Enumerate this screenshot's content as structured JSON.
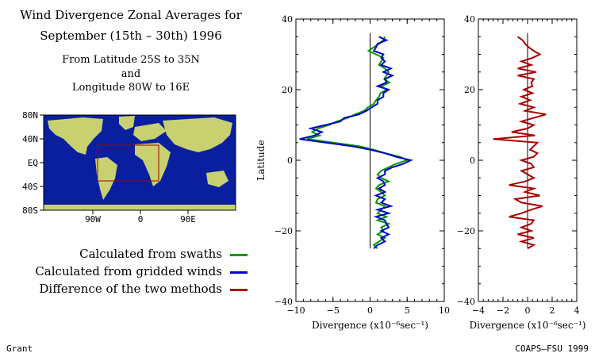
{
  "title": {
    "line1": "Wind Divergence Zonal Averages for",
    "line2": "September (15th – 30th) 1996",
    "line3": "From Latitude 25S to 35N",
    "line4": "and",
    "line5": "Longitude 80W to 16E"
  },
  "map": {
    "lat_labels": [
      "80N",
      "40N",
      "EQ",
      "40S",
      "80S"
    ],
    "lon_labels": [
      "90W",
      "0",
      "90E"
    ],
    "colors": {
      "ocean": "#0a1fa0",
      "land": "#c8d070",
      "box": "#aa0000"
    }
  },
  "legend": [
    {
      "label": "Calculated from swaths",
      "color": "#009900"
    },
    {
      "label": "Calculated from gridded winds",
      "color": "#0000cc"
    },
    {
      "label": "Difference of the two methods",
      "color": "#aa0000"
    }
  ],
  "footer": {
    "left": "Grant",
    "right": "COAPS–FSU 1999"
  },
  "chart_data": [
    {
      "type": "line",
      "orientation": "vertical-profile",
      "ylabel": "Latitude",
      "xlabel": "Divergence (x10⁻⁶sec⁻¹)",
      "xlim": [
        -10,
        10
      ],
      "ylim": [
        -40,
        40
      ],
      "xticks": [
        "−10",
        "−5",
        "0",
        "5",
        "10"
      ],
      "yticks": [
        "−40",
        "−20",
        "0",
        "20",
        "40"
      ],
      "series": [
        {
          "name": "Calculated from swaths",
          "color": "#009900",
          "lat": [
            35,
            34,
            33,
            32,
            31,
            30,
            29,
            28,
            27,
            26,
            25,
            24,
            23,
            22,
            21,
            20,
            19,
            18,
            17,
            16,
            15,
            14,
            13,
            12,
            11,
            10,
            9,
            8,
            7,
            6,
            5,
            4,
            3,
            2,
            1,
            0,
            -1,
            -2,
            -3,
            -4,
            -5,
            -6,
            -7,
            -8,
            -9,
            -10,
            -11,
            -12,
            -13,
            -14,
            -15,
            -16,
            -17,
            -18,
            -19,
            -20,
            -21,
            -22,
            -23,
            -24,
            -25
          ],
          "div": [
            2.0,
            1.8,
            1.2,
            0.5,
            -0.2,
            0.8,
            1.8,
            1.5,
            1.2,
            2.0,
            2.5,
            2.2,
            1.9,
            2.6,
            1.5,
            2.2,
            1.4,
            1.2,
            0.8,
            0.5,
            -0.3,
            -0.8,
            -2.0,
            -3.0,
            -4.5,
            -5.5,
            -7.0,
            -7.8,
            -6.8,
            -8.5,
            -5.0,
            -1.5,
            0.5,
            2.0,
            4.0,
            5.0,
            3.5,
            2.5,
            1.5,
            1.0,
            1.5,
            2.5,
            1.2,
            0.8,
            1.5,
            2.0,
            1.0,
            0.8,
            2.0,
            1.5,
            1.0,
            2.2,
            1.0,
            2.5,
            1.5,
            1.8,
            1.0,
            2.0,
            1.2,
            0.5,
            1.0
          ]
        },
        {
          "name": "Calculated from gridded winds",
          "color": "#0000cc",
          "lat": [
            35,
            34,
            33,
            32,
            31,
            30,
            29,
            28,
            27,
            26,
            25,
            24,
            23,
            22,
            21,
            20,
            19,
            18,
            17,
            16,
            15,
            14,
            13,
            12,
            11,
            10,
            9,
            8,
            7,
            6,
            5,
            4,
            3,
            2,
            1,
            0,
            -1,
            -2,
            -3,
            -4,
            -5,
            -6,
            -7,
            -8,
            -9,
            -10,
            -11,
            -12,
            -13,
            -14,
            -15,
            -16,
            -17,
            -18,
            -19,
            -20,
            -21,
            -22,
            -23,
            -24,
            -25
          ],
          "div": [
            1.2,
            2.2,
            1.0,
            0.8,
            0.5,
            1.8,
            1.5,
            2.0,
            1.5,
            2.8,
            1.8,
            3.0,
            2.0,
            2.2,
            1.0,
            2.5,
            1.8,
            1.8,
            1.0,
            1.0,
            0.2,
            -0.5,
            -1.5,
            -3.5,
            -4.0,
            -6.0,
            -8.0,
            -6.5,
            -7.5,
            -9.5,
            -6.0,
            -2.5,
            0.0,
            2.0,
            3.5,
            5.5,
            4.5,
            3.0,
            2.0,
            2.0,
            1.0,
            1.8,
            2.0,
            1.2,
            2.0,
            0.8,
            2.0,
            1.5,
            2.8,
            1.0,
            2.5,
            0.8,
            2.0,
            2.2,
            2.5,
            1.5,
            2.5,
            1.5,
            2.0,
            1.0,
            0.5
          ]
        }
      ]
    },
    {
      "type": "line",
      "orientation": "vertical-profile",
      "xlabel": "Divergence (x10⁻⁶sec⁻¹)",
      "xlim": [
        -4,
        4
      ],
      "ylim": [
        -40,
        40
      ],
      "xticks": [
        "−4",
        "−2",
        "0",
        "2",
        "4"
      ],
      "yticks": [
        "−40",
        "−20",
        "0",
        "20",
        "40"
      ],
      "series": [
        {
          "name": "Difference of the two methods",
          "color": "#aa0000",
          "lat": [
            35,
            34,
            33,
            32,
            31,
            30,
            29,
            28,
            27,
            26,
            25,
            24,
            23,
            22,
            21,
            20,
            19,
            18,
            17,
            16,
            15,
            14,
            13,
            12,
            11,
            10,
            9,
            8,
            7,
            6,
            5,
            4,
            3,
            2,
            1,
            0,
            -1,
            -2,
            -3,
            -4,
            -5,
            -6,
            -7,
            -8,
            -9,
            -10,
            -11,
            -12,
            -13,
            -14,
            -15,
            -16,
            -17,
            -18,
            -19,
            -20,
            -21,
            -22,
            -23,
            -24,
            -25
          ],
          "div": [
            -0.8,
            -0.4,
            -0.2,
            0.1,
            0.5,
            1.0,
            0.4,
            -0.5,
            0.3,
            -0.8,
            0.7,
            -0.8,
            0.5,
            0.3,
            0.4,
            -0.3,
            0.4,
            -0.5,
            0.2,
            -0.6,
            0.5,
            -0.2,
            1.5,
            0.5,
            -0.5,
            0.5,
            0.0,
            -1.3,
            0.6,
            -2.8,
            0.8,
            0.5,
            0.2,
            0.8,
            0.5,
            -0.5,
            0.3,
            0.5,
            -0.5,
            0.0,
            0.5,
            -0.2,
            -1.5,
            0.5,
            -0.2,
            1.0,
            -1.0,
            -0.5,
            1.2,
            0.3,
            -0.5,
            -1.5,
            0.5,
            0.3,
            -0.5,
            0.3,
            -0.8,
            0.5,
            -0.5,
            0.5,
            0.0
          ]
        }
      ]
    }
  ]
}
